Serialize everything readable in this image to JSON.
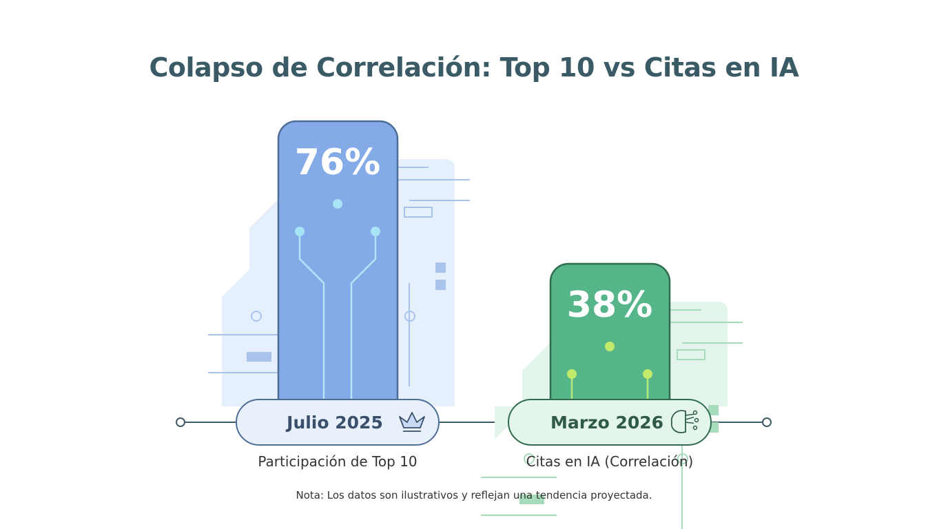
{
  "chart_data": {
    "type": "bar",
    "title": "Colapso de Correlación: Top 10 vs Citas en IA",
    "categories": [
      "Julio 2025",
      "Marzo 2026"
    ],
    "values": [
      76,
      38
    ],
    "value_labels": [
      "76%",
      "38%"
    ],
    "series_labels": [
      "Participación de Top 10",
      "Citas en IA (Correlación)"
    ],
    "ylim": [
      0,
      100
    ],
    "unit": "%",
    "grid": false,
    "colors": [
      "#84aae8",
      "#56b68a"
    ],
    "icons": [
      "crown-icon",
      "brain-circuit-icon"
    ]
  },
  "note": "Nota: Los datos son ilustrativos y reflejan una tendencia proyectada."
}
